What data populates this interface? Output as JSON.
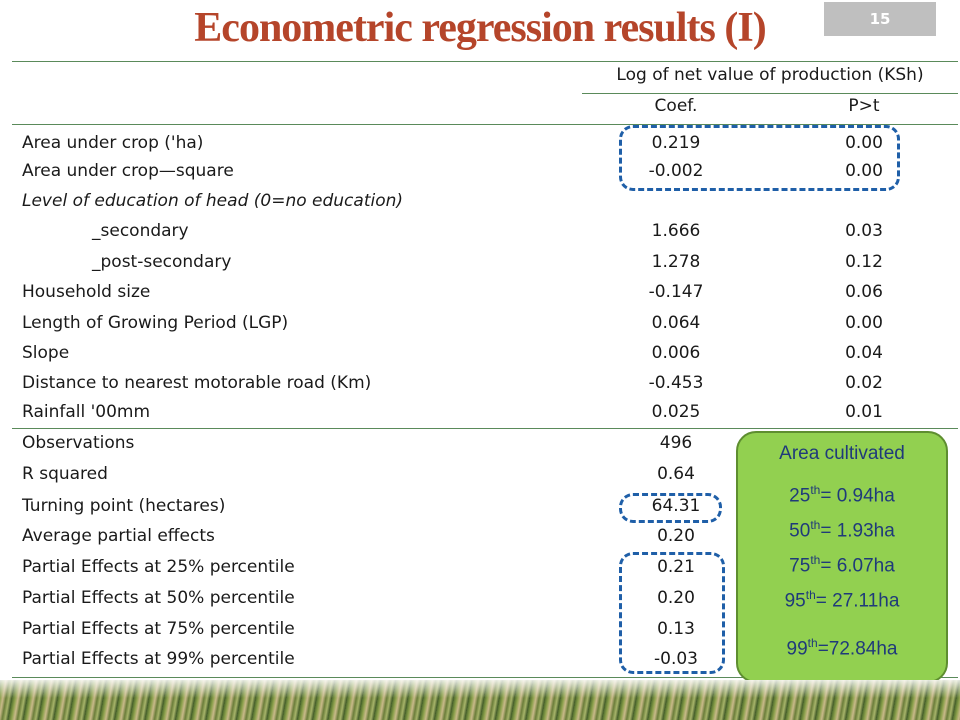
{
  "title": "Econometric regression results (I)",
  "page_number": "15",
  "table": {
    "dependent_variable": "Log of net value of production (KSh)",
    "col_coef": "Coef.",
    "col_p": "P>t",
    "rows": [
      {
        "label": "Area under crop ('ha)",
        "coef": "0.219",
        "p": "0.00"
      },
      {
        "label": "Area under crop—square",
        "coef": "-0.002",
        "p": "0.00"
      },
      {
        "label": "Level of education of head (0=no education)",
        "coef": "",
        "p": ""
      },
      {
        "label": "_secondary",
        "coef": "1.666",
        "p": "0.03"
      },
      {
        "label": "_post-secondary",
        "coef": "1.278",
        "p": "0.12"
      },
      {
        "label": "Household size",
        "coef": "-0.147",
        "p": "0.06"
      },
      {
        "label": "Length of Growing Period (LGP)",
        "coef": "0.064",
        "p": "0.00"
      },
      {
        "label": "Slope",
        "coef": "0.006",
        "p": "0.04"
      },
      {
        "label": "Distance to nearest motorable road (Km)",
        "coef": "-0.453",
        "p": "0.02"
      },
      {
        "label": "Rainfall '00mm",
        "coef": "0.025",
        "p": "0.01"
      }
    ],
    "stats": [
      {
        "label": "Observations",
        "value": "496"
      },
      {
        "label": "R squared",
        "value": "0.64"
      },
      {
        "label": "Turning point (hectares)",
        "value": "64.31"
      },
      {
        "label": "Average partial effects",
        "value": "0.20"
      },
      {
        "label": "Partial Effects at 25% percentile",
        "value": "0.21"
      },
      {
        "label": "Partial Effects at 50% percentile",
        "value": "0.20"
      },
      {
        "label": "Partial Effects at 75% percentile",
        "value": "0.13"
      },
      {
        "label": "Partial Effects at 99% percentile",
        "value": "-0.03"
      }
    ]
  },
  "callout": {
    "title": "Area cultivated",
    "items": [
      {
        "ord": "25",
        "sup": "th",
        "text": "= 0.94ha"
      },
      {
        "ord": "50",
        "sup": "th",
        "text": "= 1.93ha"
      },
      {
        "ord": "75",
        "sup": "th",
        "text": "= 6.07ha"
      },
      {
        "ord": "95",
        "sup": "th",
        "text": "= 27.11ha"
      },
      {
        "ord": "99",
        "sup": "th",
        "text": "=72.84ha"
      }
    ]
  },
  "colors": {
    "title": "#b5452a",
    "dash": "#1f5fa8",
    "callout_bg": "#92d050",
    "callout_text": "#1f3a7a"
  }
}
